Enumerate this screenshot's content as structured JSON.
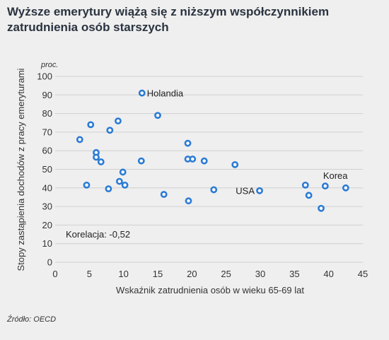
{
  "title": "Wyższe emerytury wiążą się z niższym współczynnikiem zatrudnienia osób starszych",
  "source": "Źródło: OECD",
  "colors": {
    "background": "#efefef",
    "marker": "#2b7bd4",
    "title": "#2a3340"
  },
  "chart_data": {
    "type": "scatter",
    "xlabel": "Wskaźnik zatrudnienia osób w wieku 65-69 lat",
    "ylabel": "Stopy zastąpienia dochodów z pracy emeryturami",
    "yunit": "proc.",
    "xlim": [
      0,
      45
    ],
    "ylim": [
      0,
      100
    ],
    "xticks": [
      0,
      5,
      10,
      15,
      20,
      25,
      30,
      35,
      40,
      45
    ],
    "yticks": [
      0,
      10,
      20,
      30,
      40,
      50,
      60,
      70,
      80,
      90,
      100
    ],
    "grid": "horizontal",
    "correlation_label": "Korelacja: -0,52",
    "points": [
      {
        "x": 12.7,
        "y": 91,
        "label": "Holandia"
      },
      {
        "x": 15.0,
        "y": 79
      },
      {
        "x": 5.2,
        "y": 74
      },
      {
        "x": 9.2,
        "y": 76
      },
      {
        "x": 8.0,
        "y": 71
      },
      {
        "x": 3.6,
        "y": 66
      },
      {
        "x": 19.4,
        "y": 64
      },
      {
        "x": 6.0,
        "y": 59
      },
      {
        "x": 6.0,
        "y": 56.5
      },
      {
        "x": 6.7,
        "y": 54
      },
      {
        "x": 12.6,
        "y": 54.5
      },
      {
        "x": 19.4,
        "y": 55.5
      },
      {
        "x": 20.1,
        "y": 55.5
      },
      {
        "x": 21.8,
        "y": 54.5
      },
      {
        "x": 26.3,
        "y": 52.5
      },
      {
        "x": 9.9,
        "y": 48.5
      },
      {
        "x": 9.4,
        "y": 43.5
      },
      {
        "x": 10.2,
        "y": 41.5
      },
      {
        "x": 4.6,
        "y": 41.5
      },
      {
        "x": 7.8,
        "y": 39.5
      },
      {
        "x": 15.9,
        "y": 36.5
      },
      {
        "x": 23.2,
        "y": 39
      },
      {
        "x": 29.9,
        "y": 38.5,
        "label": "USA"
      },
      {
        "x": 19.5,
        "y": 33
      },
      {
        "x": 36.6,
        "y": 41.5
      },
      {
        "x": 37.1,
        "y": 36
      },
      {
        "x": 39.5,
        "y": 41,
        "label": "Korea"
      },
      {
        "x": 42.5,
        "y": 40
      },
      {
        "x": 38.9,
        "y": 29
      }
    ]
  }
}
